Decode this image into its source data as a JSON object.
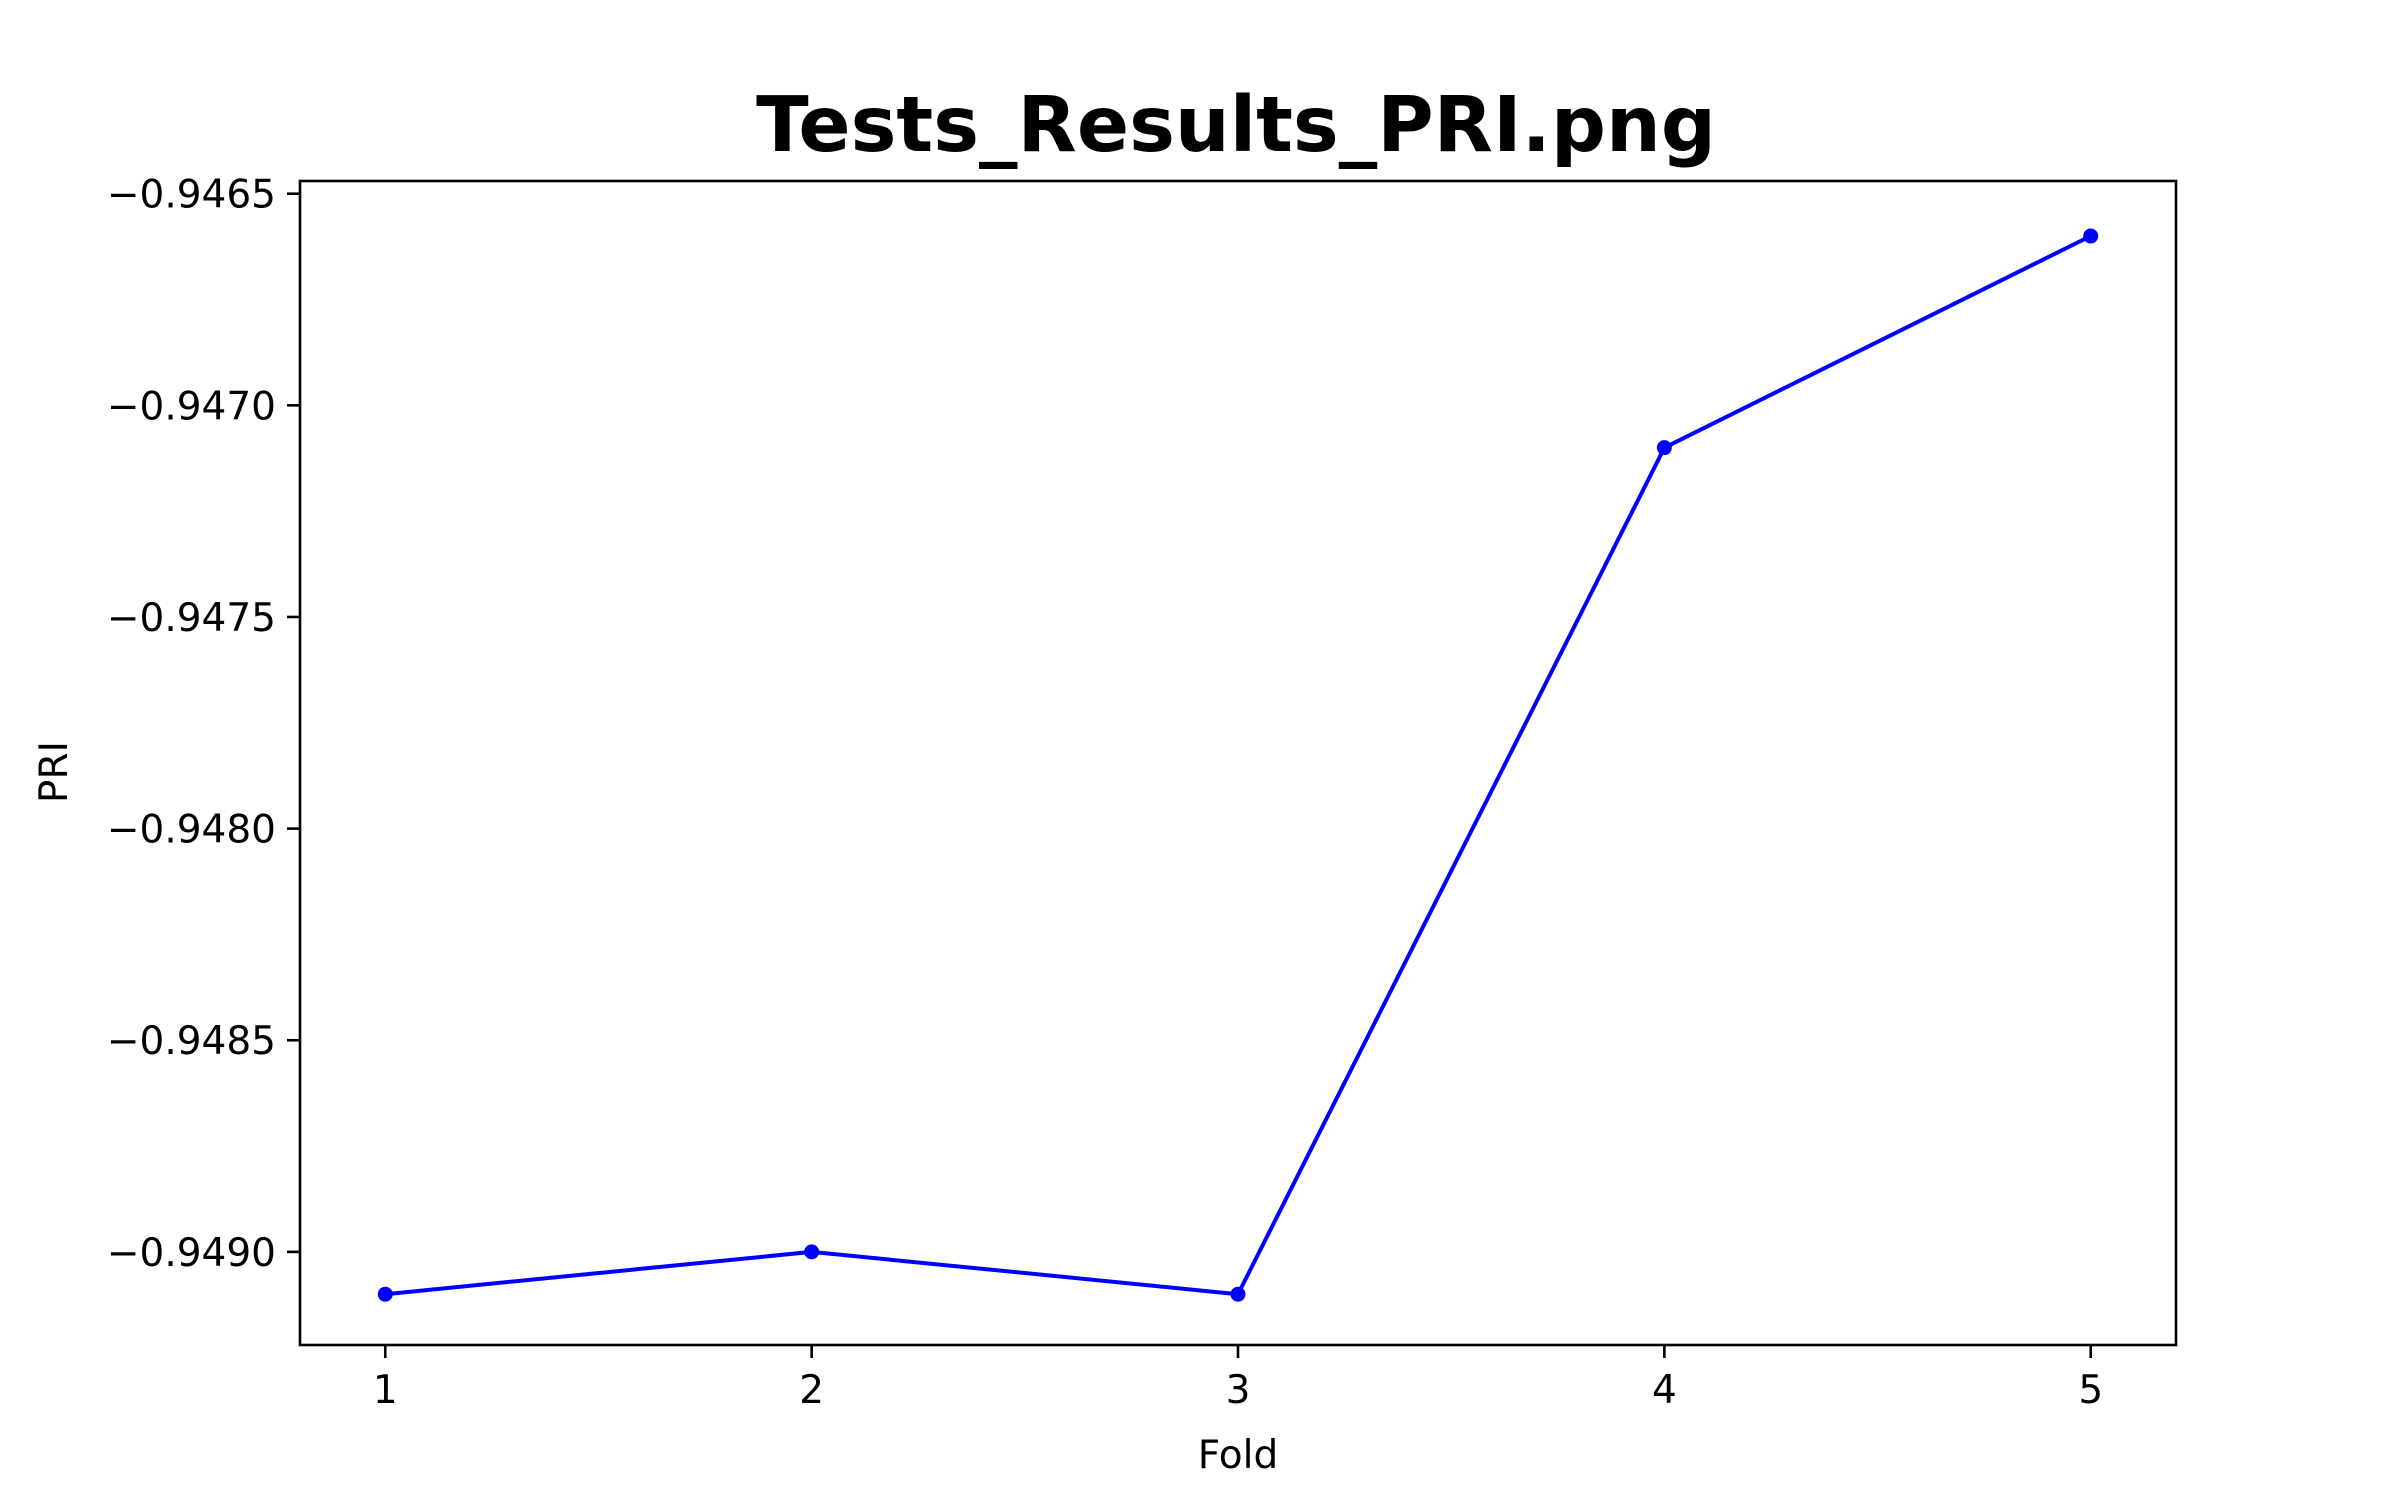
{
  "chart_data": {
    "type": "line",
    "title": "Tests_Results_PRI.png",
    "xlabel": "Fold",
    "ylabel": "PRI",
    "x": [
      1,
      2,
      3,
      4,
      5
    ],
    "series": [
      {
        "values": [
          -0.9491,
          -0.949,
          -0.9491,
          -0.9471,
          -0.9466
        ]
      }
    ],
    "xlim": [
      0.8,
      5.2
    ],
    "ylim": [
      -0.94922,
      -0.94647
    ],
    "xticks": [
      1,
      2,
      3,
      4,
      5
    ],
    "xtick_labels": [
      "1",
      "2",
      "3",
      "4",
      "5"
    ],
    "yticks": [
      -0.9465,
      -0.947,
      -0.9475,
      -0.948,
      -0.9485,
      -0.949
    ],
    "ytick_labels": [
      "−0.9465",
      "−0.9470",
      "−0.9475",
      "−0.9480",
      "−0.9485",
      "−0.9490"
    ],
    "grid": false,
    "legend": "none",
    "line_color": "#0000ff",
    "marker": "circle"
  }
}
